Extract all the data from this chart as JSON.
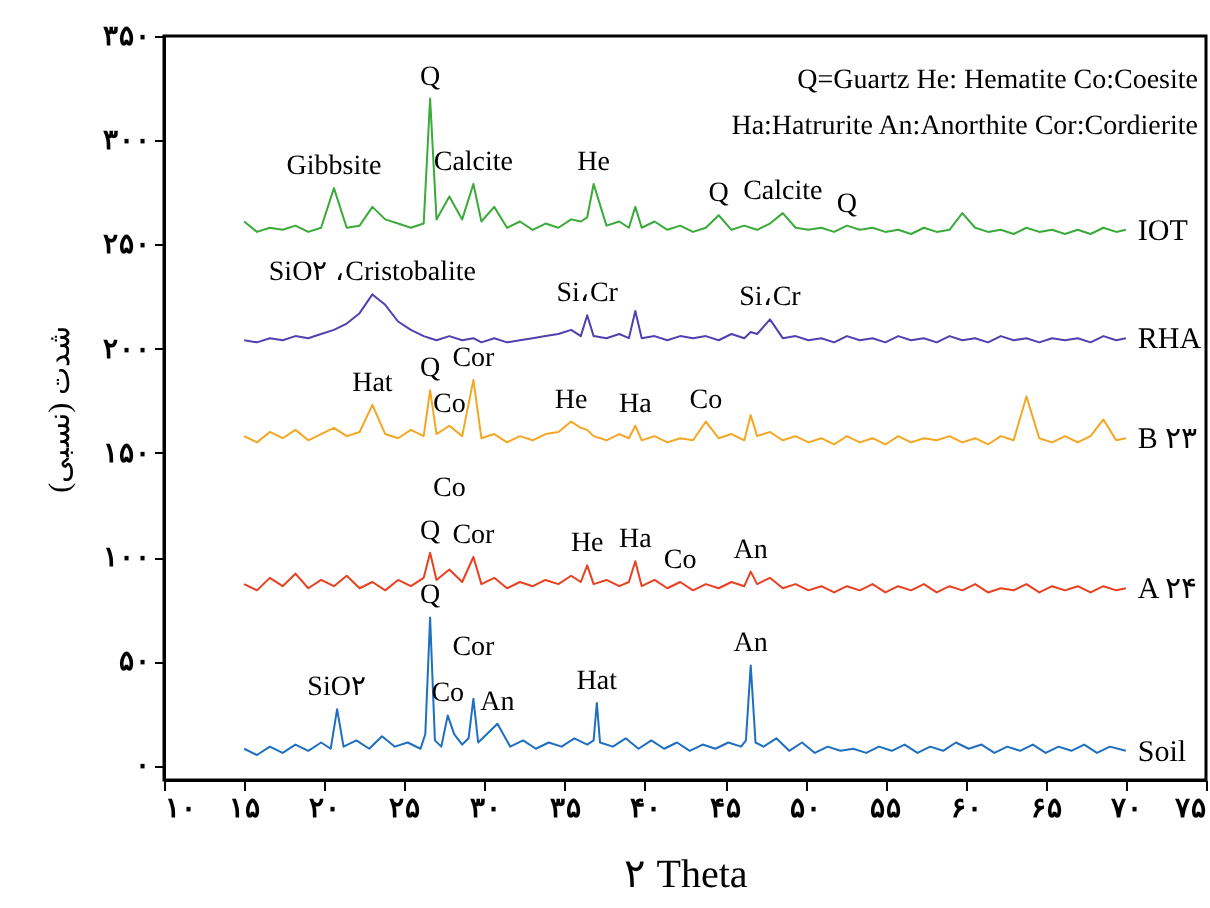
{
  "chart_data": {
    "type": "line",
    "xlabel": "۲ Theta",
    "ylabel": "شدت (نسبی)",
    "xlim": [
      10,
      75
    ],
    "ylim": [
      -7,
      350
    ],
    "xticks": [
      {
        "value": 10,
        "label": "۱۰"
      },
      {
        "value": 15,
        "label": "۱۵"
      },
      {
        "value": 20,
        "label": "۲۰"
      },
      {
        "value": 25,
        "label": "۲۵"
      },
      {
        "value": 30,
        "label": "۳۰"
      },
      {
        "value": 35,
        "label": "۳۵"
      },
      {
        "value": 40,
        "label": "۴۰"
      },
      {
        "value": 45,
        "label": "۴۵"
      },
      {
        "value": 50,
        "label": "۵۰"
      },
      {
        "value": 55,
        "label": "۵۵"
      },
      {
        "value": 60,
        "label": "۶۰"
      },
      {
        "value": 65,
        "label": "۶۵"
      },
      {
        "value": 70,
        "label": "۷۰"
      },
      {
        "value": 75,
        "label": "۷۵"
      }
    ],
    "yticks": [
      {
        "value": 0,
        "label": "۰"
      },
      {
        "value": 50,
        "label": "۵۰"
      },
      {
        "value": 100,
        "label": "۱۰۰"
      },
      {
        "value": 150,
        "label": "۱۵۰"
      },
      {
        "value": 200,
        "label": "۲۰۰"
      },
      {
        "value": 250,
        "label": "۲۵۰"
      },
      {
        "value": 300,
        "label": "۳۰۰"
      },
      {
        "value": 350,
        "label": "۳۵۰"
      }
    ],
    "x": [
      15,
      15.8,
      16.6,
      17.4,
      18.2,
      19,
      19.8,
      20.6,
      21.4,
      22.2,
      23,
      23.8,
      24.6,
      25.4,
      26.2,
      26.6,
      27,
      27.8,
      28.6,
      29.3,
      29.8,
      30.6,
      31.4,
      32.2,
      33,
      33.8,
      34.6,
      35.4,
      36,
      36.4,
      36.8,
      37.6,
      38.4,
      39,
      39.4,
      39.8,
      40.6,
      41.4,
      42.2,
      43,
      43.8,
      44.6,
      45.4,
      46.2,
      46.6,
      47,
      47.8,
      48.6,
      49.4,
      50.2,
      51,
      51.8,
      52.6,
      53.4,
      54.2,
      55,
      55.8,
      56.6,
      57.4,
      58.2,
      59,
      59.8,
      60.6,
      61.4,
      62.2,
      63,
      63.8,
      64.6,
      65.4,
      66.2,
      67,
      67.8,
      68.6,
      69.4,
      70
    ],
    "series": [
      {
        "name": "IOT",
        "color": "#3aaa3a",
        "values": [
          261,
          256,
          258,
          257,
          259,
          256,
          258,
          277,
          258,
          259,
          268,
          262,
          260,
          258,
          260,
          320,
          262,
          273,
          262,
          279,
          261,
          268,
          258,
          261,
          257,
          260,
          258,
          262,
          261,
          263,
          279,
          259,
          261,
          258,
          268,
          258,
          261,
          257,
          259,
          256,
          258,
          264,
          257,
          259,
          258,
          257,
          260,
          265,
          258,
          257,
          258,
          256,
          259,
          257,
          258,
          256,
          257,
          255,
          258,
          256,
          257,
          265,
          258,
          256,
          257,
          255,
          258,
          256,
          257,
          255,
          257,
          255,
          258,
          256,
          257
        ]
      },
      {
        "name": "RHA",
        "color": "#5040b0",
        "values": [
          204,
          203,
          205,
          204,
          206,
          205,
          207,
          209,
          212,
          217,
          226,
          221,
          213,
          209,
          206,
          205,
          204,
          206,
          204,
          205,
          203,
          205,
          203,
          204,
          205,
          206,
          207,
          209,
          206,
          216,
          206,
          205,
          207,
          205,
          218,
          205,
          206,
          204,
          206,
          205,
          206,
          204,
          207,
          205,
          208,
          207,
          214,
          205,
          206,
          204,
          205,
          203,
          206,
          204,
          205,
          203,
          206,
          204,
          205,
          203,
          206,
          204,
          205,
          203,
          206,
          204,
          205,
          203,
          205,
          204,
          205,
          203,
          206,
          204,
          205
        ]
      },
      {
        "name": "B ۲۳",
        "color": "#f5a623",
        "values": [
          158,
          155,
          160,
          157,
          161,
          156,
          159,
          162,
          158,
          160,
          173,
          159,
          157,
          161,
          158,
          180,
          159,
          163,
          158,
          185,
          157,
          159,
          155,
          158,
          156,
          159,
          160,
          165,
          162,
          161,
          158,
          156,
          159,
          157,
          163,
          156,
          158,
          155,
          157,
          156,
          165,
          157,
          159,
          156,
          168,
          158,
          160,
          156,
          158,
          155,
          157,
          154,
          158,
          155,
          157,
          154,
          158,
          155,
          157,
          156,
          158,
          155,
          157,
          154,
          158,
          156,
          177,
          157,
          155,
          158,
          155,
          158,
          166,
          156,
          157
        ]
      },
      {
        "name": "A ۲۴",
        "color": "#e84020",
        "values": [
          87,
          84,
          90,
          86,
          92,
          85,
          89,
          86,
          91,
          85,
          88,
          84,
          89,
          86,
          90,
          102,
          89,
          94,
          88,
          100,
          87,
          90,
          85,
          88,
          86,
          89,
          87,
          91,
          88,
          96,
          87,
          89,
          86,
          88,
          98,
          86,
          89,
          85,
          88,
          84,
          87,
          85,
          88,
          86,
          93,
          87,
          90,
          85,
          87,
          84,
          86,
          83,
          86,
          84,
          87,
          83,
          86,
          84,
          87,
          83,
          86,
          84,
          87,
          83,
          85,
          84,
          87,
          83,
          86,
          84,
          86,
          83,
          86,
          84,
          85
        ]
      },
      {
        "name": "Soil",
        "color": "#1e6fc0",
        "x": [
          15,
          15.8,
          16.6,
          17.4,
          18.2,
          19,
          19.8,
          20.4,
          20.8,
          21.2,
          22,
          22.8,
          23.6,
          24.4,
          25.2,
          26,
          26.3,
          26.6,
          26.9,
          27.3,
          27.7,
          28.1,
          28.6,
          29,
          29.3,
          29.6,
          30,
          30.8,
          31.6,
          32.4,
          33.2,
          34,
          34.8,
          35.6,
          36.4,
          36.8,
          37,
          37.2,
          38,
          38.8,
          39.6,
          40.4,
          41.2,
          42,
          42.8,
          43.6,
          44.4,
          45.2,
          46,
          46.3,
          46.6,
          46.9,
          47.4,
          48.2,
          49,
          49.8,
          50.6,
          51.4,
          52.2,
          53,
          53.8,
          54.6,
          55.4,
          56.2,
          57,
          57.8,
          58.6,
          59.4,
          60.2,
          61,
          61.8,
          62.6,
          63.4,
          64.2,
          65,
          65.8,
          66.6,
          67.4,
          68.2,
          69,
          70
        ],
        "values": [
          8,
          5,
          9,
          6,
          10,
          7,
          11,
          8,
          27,
          9,
          12,
          8,
          14,
          9,
          11,
          8,
          15,
          71,
          12,
          9,
          24,
          15,
          10,
          13,
          32,
          11,
          14,
          20,
          9,
          12,
          8,
          11,
          9,
          13,
          10,
          12,
          30,
          11,
          9,
          13,
          8,
          12,
          8,
          11,
          7,
          10,
          8,
          11,
          9,
          12,
          48,
          11,
          9,
          13,
          7,
          11,
          6,
          9,
          7,
          8,
          6,
          9,
          7,
          10,
          6,
          9,
          7,
          11,
          8,
          10,
          6,
          9,
          7,
          10,
          6,
          9,
          7,
          10,
          6,
          9,
          7
        ]
      }
    ],
    "annotations": [
      "Q=Guartz  He: Hematite  Co:Coesite",
      "Ha:Hatrurite  An:Anorthite  Cor:Cordierite",
      {
        "text": "Q",
        "x": 26.6,
        "y": 320
      },
      {
        "text": "Gibbsite",
        "x": 20.6,
        "y": 277
      },
      {
        "text": "Calcite",
        "x": 29.3,
        "y": 279
      },
      {
        "text": "He",
        "x": 36.8,
        "y": 279
      },
      {
        "text": "Q",
        "x": 44.6,
        "y": 264
      },
      {
        "text": "Calcite",
        "x": 48.6,
        "y": 265
      },
      {
        "text": "Q",
        "x": 52.6,
        "y": 259
      },
      {
        "text": "SiO۲ ،Cristobalite",
        "x": 23,
        "y": 226
      },
      {
        "text": "Si،Cr",
        "x": 36.4,
        "y": 216
      },
      {
        "text": "Si،Cr",
        "x": 47.8,
        "y": 214
      },
      {
        "text": "Hat",
        "x": 23,
        "y": 173
      },
      {
        "text": "Q",
        "x": 26.6,
        "y": 180
      },
      {
        "text": "Co",
        "x": 27.8,
        "y": 163
      },
      {
        "text": "Cor",
        "x": 29.3,
        "y": 185
      },
      {
        "text": "He",
        "x": 35.4,
        "y": 165
      },
      {
        "text": "Ha",
        "x": 39.4,
        "y": 163
      },
      {
        "text": "Co",
        "x": 43.8,
        "y": 165
      },
      {
        "text": "Q",
        "x": 26.6,
        "y": 102
      },
      {
        "text": "Co",
        "x": 27.8,
        "y": 94
      },
      {
        "text": "Cor",
        "x": 29.3,
        "y": 100
      },
      {
        "text": "He",
        "x": 36.4,
        "y": 96
      },
      {
        "text": "Ha",
        "x": 39.4,
        "y": 98
      },
      {
        "text": "Co",
        "x": 42.2,
        "y": 88
      },
      {
        "text": "An",
        "x": 46.6,
        "y": 93
      },
      {
        "text": "Q",
        "x": 26.6,
        "y": 71
      },
      {
        "text": "SiO۲",
        "x": 20.8,
        "y": 27
      },
      {
        "text": "Co",
        "x": 27.7,
        "y": 24
      },
      {
        "text": "Cor",
        "x": 29.3,
        "y": 32
      },
      {
        "text": "An",
        "x": 30.8,
        "y": 20
      },
      {
        "text": "Hat",
        "x": 37,
        "y": 30
      },
      {
        "text": "An",
        "x": 46.6,
        "y": 48
      }
    ]
  }
}
